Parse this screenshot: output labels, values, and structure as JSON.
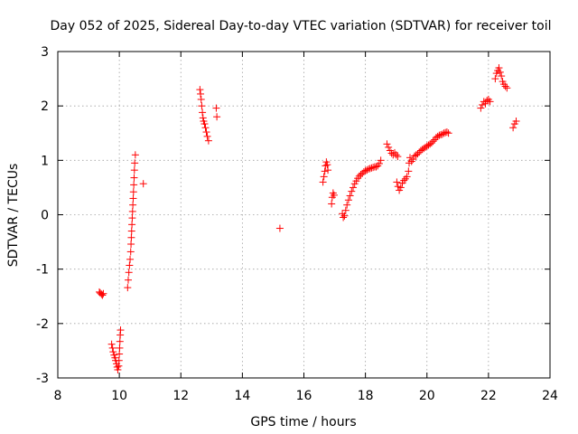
{
  "chart_data": {
    "type": "scatter",
    "title": "Day 052 of 2025, Sidereal Day-to-day VTEC variation (SDTVAR) for receiver toil",
    "xlabel": "GPS time / hours",
    "ylabel": "SDTVAR / TECUs",
    "xlim": [
      8,
      24
    ],
    "ylim": [
      -3,
      3
    ],
    "xticks": [
      8,
      10,
      12,
      14,
      16,
      18,
      20,
      22,
      24
    ],
    "yticks": [
      -3,
      -2,
      -1,
      0,
      1,
      2,
      3
    ],
    "grid": true,
    "marker": "plus",
    "marker_color": "#ff0000",
    "series": [
      {
        "name": "SDTVAR",
        "segments": [
          [
            [
              9.35,
              -1.42
            ],
            [
              9.38,
              -1.44
            ],
            [
              9.42,
              -1.46
            ],
            [
              9.45,
              -1.48
            ],
            [
              9.48,
              -1.45
            ]
          ],
          [
            [
              9.75,
              -2.38
            ],
            [
              9.78,
              -2.45
            ],
            [
              9.8,
              -2.52
            ],
            [
              9.83,
              -2.58
            ],
            [
              9.86,
              -2.63
            ],
            [
              9.88,
              -2.68
            ],
            [
              9.91,
              -2.74
            ],
            [
              9.93,
              -2.8
            ],
            [
              9.95,
              -2.85
            ],
            [
              9.98,
              -2.78
            ],
            [
              9.99,
              -2.68
            ],
            [
              10.0,
              -2.56
            ],
            [
              10.01,
              -2.45
            ],
            [
              10.02,
              -2.33
            ],
            [
              10.03,
              -2.21
            ],
            [
              10.04,
              -2.12
            ]
          ],
          [
            [
              10.27,
              -1.34
            ],
            [
              10.29,
              -1.2
            ],
            [
              10.31,
              -1.06
            ],
            [
              10.33,
              -0.93
            ],
            [
              10.35,
              -0.82
            ],
            [
              10.37,
              -0.68
            ],
            [
              10.38,
              -0.54
            ],
            [
              10.39,
              -0.42
            ],
            [
              10.4,
              -0.3
            ],
            [
              10.41,
              -0.18
            ],
            [
              10.42,
              -0.06
            ],
            [
              10.43,
              0.06
            ],
            [
              10.44,
              0.18
            ],
            [
              10.45,
              0.3
            ],
            [
              10.46,
              0.42
            ],
            [
              10.47,
              0.55
            ],
            [
              10.48,
              0.68
            ],
            [
              10.49,
              0.82
            ],
            [
              10.5,
              0.95
            ],
            [
              10.52,
              1.1
            ]
          ],
          [
            [
              10.78,
              0.57
            ]
          ],
          [
            [
              12.62,
              2.3
            ],
            [
              12.64,
              2.22
            ],
            [
              12.66,
              2.12
            ],
            [
              12.68,
              2.0
            ],
            [
              12.7,
              1.88
            ],
            [
              12.72,
              1.78
            ],
            [
              12.74,
              1.72
            ],
            [
              12.77,
              1.67
            ],
            [
              12.8,
              1.6
            ],
            [
              12.83,
              1.52
            ],
            [
              12.86,
              1.44
            ],
            [
              12.9,
              1.36
            ]
          ],
          [
            [
              13.15,
              1.96
            ],
            [
              13.17,
              1.8
            ]
          ],
          [
            [
              15.22,
              -0.25
            ]
          ],
          [
            [
              16.62,
              0.6
            ],
            [
              16.65,
              0.7
            ],
            [
              16.68,
              0.8
            ],
            [
              16.7,
              0.9
            ],
            [
              16.73,
              0.97
            ],
            [
              16.76,
              0.92
            ],
            [
              16.78,
              0.82
            ]
          ],
          [
            [
              16.9,
              0.2
            ],
            [
              16.92,
              0.32
            ],
            [
              16.95,
              0.4
            ],
            [
              16.98,
              0.36
            ]
          ],
          [
            [
              17.25,
              0.02
            ],
            [
              17.28,
              -0.05
            ],
            [
              17.32,
              -0.02
            ],
            [
              17.36,
              0.08
            ],
            [
              17.4,
              0.18
            ],
            [
              17.45,
              0.27
            ],
            [
              17.5,
              0.35
            ],
            [
              17.55,
              0.43
            ],
            [
              17.6,
              0.5
            ],
            [
              17.65,
              0.57
            ],
            [
              17.7,
              0.62
            ],
            [
              17.75,
              0.67
            ],
            [
              17.8,
              0.71
            ],
            [
              17.85,
              0.74
            ],
            [
              17.9,
              0.76
            ],
            [
              17.95,
              0.79
            ],
            [
              18.0,
              0.81
            ],
            [
              18.05,
              0.82
            ],
            [
              18.1,
              0.84
            ],
            [
              18.15,
              0.85
            ],
            [
              18.2,
              0.86
            ],
            [
              18.25,
              0.87
            ],
            [
              18.3,
              0.88
            ],
            [
              18.35,
              0.88
            ],
            [
              18.4,
              0.9
            ],
            [
              18.45,
              0.94
            ],
            [
              18.5,
              1.0
            ]
          ],
          [
            [
              18.7,
              1.3
            ],
            [
              18.75,
              1.24
            ],
            [
              18.8,
              1.18
            ],
            [
              18.85,
              1.13
            ],
            [
              18.9,
              1.1
            ],
            [
              18.95,
              1.14
            ],
            [
              19.0,
              1.1
            ],
            [
              19.05,
              1.07
            ]
          ],
          [
            [
              19.02,
              0.6
            ],
            [
              19.06,
              0.52
            ],
            [
              19.1,
              0.45
            ],
            [
              19.15,
              0.5
            ],
            [
              19.2,
              0.58
            ],
            [
              19.25,
              0.63
            ],
            [
              19.3,
              0.66
            ],
            [
              19.35,
              0.7
            ],
            [
              19.4,
              0.8
            ],
            [
              19.42,
              0.95
            ],
            [
              19.45,
              1.05
            ],
            [
              19.5,
              0.98
            ],
            [
              19.55,
              1.02
            ],
            [
              19.6,
              1.08
            ],
            [
              19.65,
              1.1
            ],
            [
              19.7,
              1.12
            ],
            [
              19.75,
              1.15
            ],
            [
              19.8,
              1.18
            ],
            [
              19.85,
              1.2
            ],
            [
              19.9,
              1.22
            ],
            [
              19.95,
              1.24
            ],
            [
              20.0,
              1.26
            ],
            [
              20.05,
              1.28
            ],
            [
              20.1,
              1.3
            ],
            [
              20.15,
              1.32
            ],
            [
              20.2,
              1.35
            ],
            [
              20.25,
              1.38
            ],
            [
              20.3,
              1.42
            ],
            [
              20.35,
              1.44
            ],
            [
              20.4,
              1.46
            ],
            [
              20.45,
              1.47
            ],
            [
              20.5,
              1.48
            ],
            [
              20.55,
              1.5
            ],
            [
              20.6,
              1.51
            ],
            [
              20.65,
              1.52
            ],
            [
              20.7,
              1.5
            ]
          ],
          [
            [
              21.75,
              1.96
            ],
            [
              21.8,
              2.02
            ],
            [
              21.85,
              2.08
            ],
            [
              21.9,
              2.04
            ],
            [
              21.95,
              2.1
            ],
            [
              22.0,
              2.12
            ],
            [
              22.05,
              2.08
            ]
          ],
          [
            [
              22.22,
              2.5
            ],
            [
              22.26,
              2.6
            ],
            [
              22.3,
              2.65
            ],
            [
              22.34,
              2.7
            ],
            [
              22.38,
              2.62
            ],
            [
              22.42,
              2.55
            ],
            [
              22.46,
              2.45
            ],
            [
              22.5,
              2.4
            ],
            [
              22.55,
              2.36
            ],
            [
              22.6,
              2.33
            ]
          ],
          [
            [
              22.8,
              1.6
            ],
            [
              22.85,
              1.67
            ],
            [
              22.9,
              1.72
            ]
          ]
        ]
      }
    ]
  }
}
